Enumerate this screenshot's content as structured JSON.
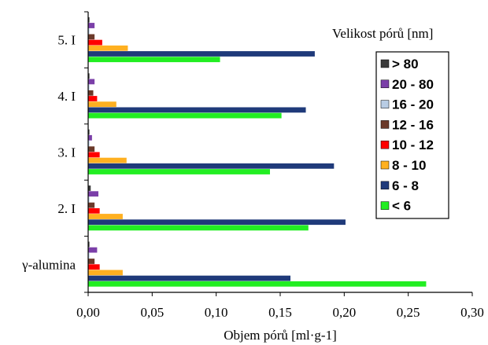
{
  "chart_data": {
    "type": "bar",
    "orientation": "horizontal",
    "xlabel": "Objem pórů [ml·g-1]",
    "ylabel": "",
    "xlim": [
      0,
      0.3
    ],
    "xticks": [
      "0,00",
      "0,05",
      "0,10",
      "0,15",
      "0,20",
      "0,25",
      "0,30"
    ],
    "categories": [
      "γ-alumina",
      "2. I",
      "3. I",
      "4. I",
      "5. I"
    ],
    "legend_title": "Velikost pórů [nm]",
    "legend_position": "right",
    "grid": false,
    "series": [
      {
        "name": "> 80",
        "color": "#3a3a3a",
        "values": [
          0.001,
          0.002,
          0.001,
          0.001,
          0.001
        ]
      },
      {
        "name": "20 - 80",
        "color": "#7b3fa8",
        "values": [
          0.007,
          0.008,
          0.003,
          0.005,
          0.005
        ]
      },
      {
        "name": "16 - 20",
        "color": "#b8cce4",
        "values": [
          0.001,
          0.001,
          0.001,
          0.001,
          0.001
        ]
      },
      {
        "name": "12 - 16",
        "color": "#6b3a2a",
        "values": [
          0.005,
          0.005,
          0.005,
          0.004,
          0.005
        ]
      },
      {
        "name": "10 - 12",
        "color": "#ff0000",
        "values": [
          0.009,
          0.009,
          0.009,
          0.007,
          0.011
        ]
      },
      {
        "name": "8 - 10",
        "color": "#ffb020",
        "values": [
          0.027,
          0.027,
          0.03,
          0.022,
          0.031
        ]
      },
      {
        "name": "6 - 8",
        "color": "#1f3a7a",
        "values": [
          0.158,
          0.201,
          0.192,
          0.17,
          0.177
        ]
      },
      {
        "name": "< 6",
        "color": "#22ee22",
        "values": [
          0.264,
          0.172,
          0.142,
          0.151,
          0.103
        ]
      }
    ]
  }
}
